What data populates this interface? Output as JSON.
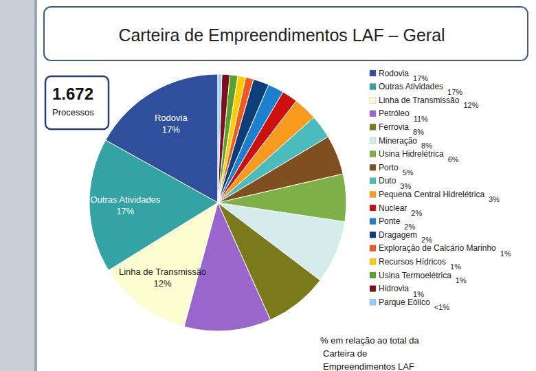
{
  "chart_data": {
    "type": "pie",
    "title": "Carteira de Empreendimentos LAF – Geral",
    "total": {
      "value": 1672,
      "label": "1.672"
    },
    "total_label": "Processos",
    "categories": [
      "Rodovia",
      "Outras Atividades",
      "Linha de Transmissão",
      "Petróleo",
      "Ferrovia",
      "Mineração",
      "Usina Hidrelétrica",
      "Porto",
      "Duto",
      "Pequena Central Hidrelétrica",
      "Nuclear",
      "Ponte",
      "Dragagem",
      "Exploração de Calcário Marinho",
      "Recursos Hídricos",
      "Usina Termoelétrica",
      "Hidrovia",
      "Parque Eólico"
    ],
    "values": [
      17,
      17,
      12,
      11,
      8,
      8,
      6,
      5,
      3,
      3,
      2,
      2,
      2,
      1,
      1,
      1,
      1,
      0.5
    ],
    "value_labels": [
      "17%",
      "17%",
      "12%",
      "11%",
      "8%",
      "8%",
      "6%",
      "5%",
      "3%",
      "3%",
      "2%",
      "2%",
      "2%",
      "1%",
      "1%",
      "1%",
      "1%",
      "<1%"
    ],
    "colors": [
      "#2f4f9c",
      "#33a3a3",
      "#fdfdd2",
      "#9966cc",
      "#7a7a1a",
      "#d5ecec",
      "#7db046",
      "#7f4f1f",
      "#4bbcbc",
      "#f79a1e",
      "#cc1010",
      "#1e7fd0",
      "#0e3e7a",
      "#f05a1e",
      "#ffcc00",
      "#5aa02c",
      "#7a1020",
      "#99ccff"
    ],
    "slice_labels": [
      "Rodovia",
      "Outras Atividades",
      "Linha de Transmissão"
    ],
    "data_labels": true,
    "legend": "right",
    "note": "% em relação ao total da Carteira de Empreendimentos LAF"
  }
}
